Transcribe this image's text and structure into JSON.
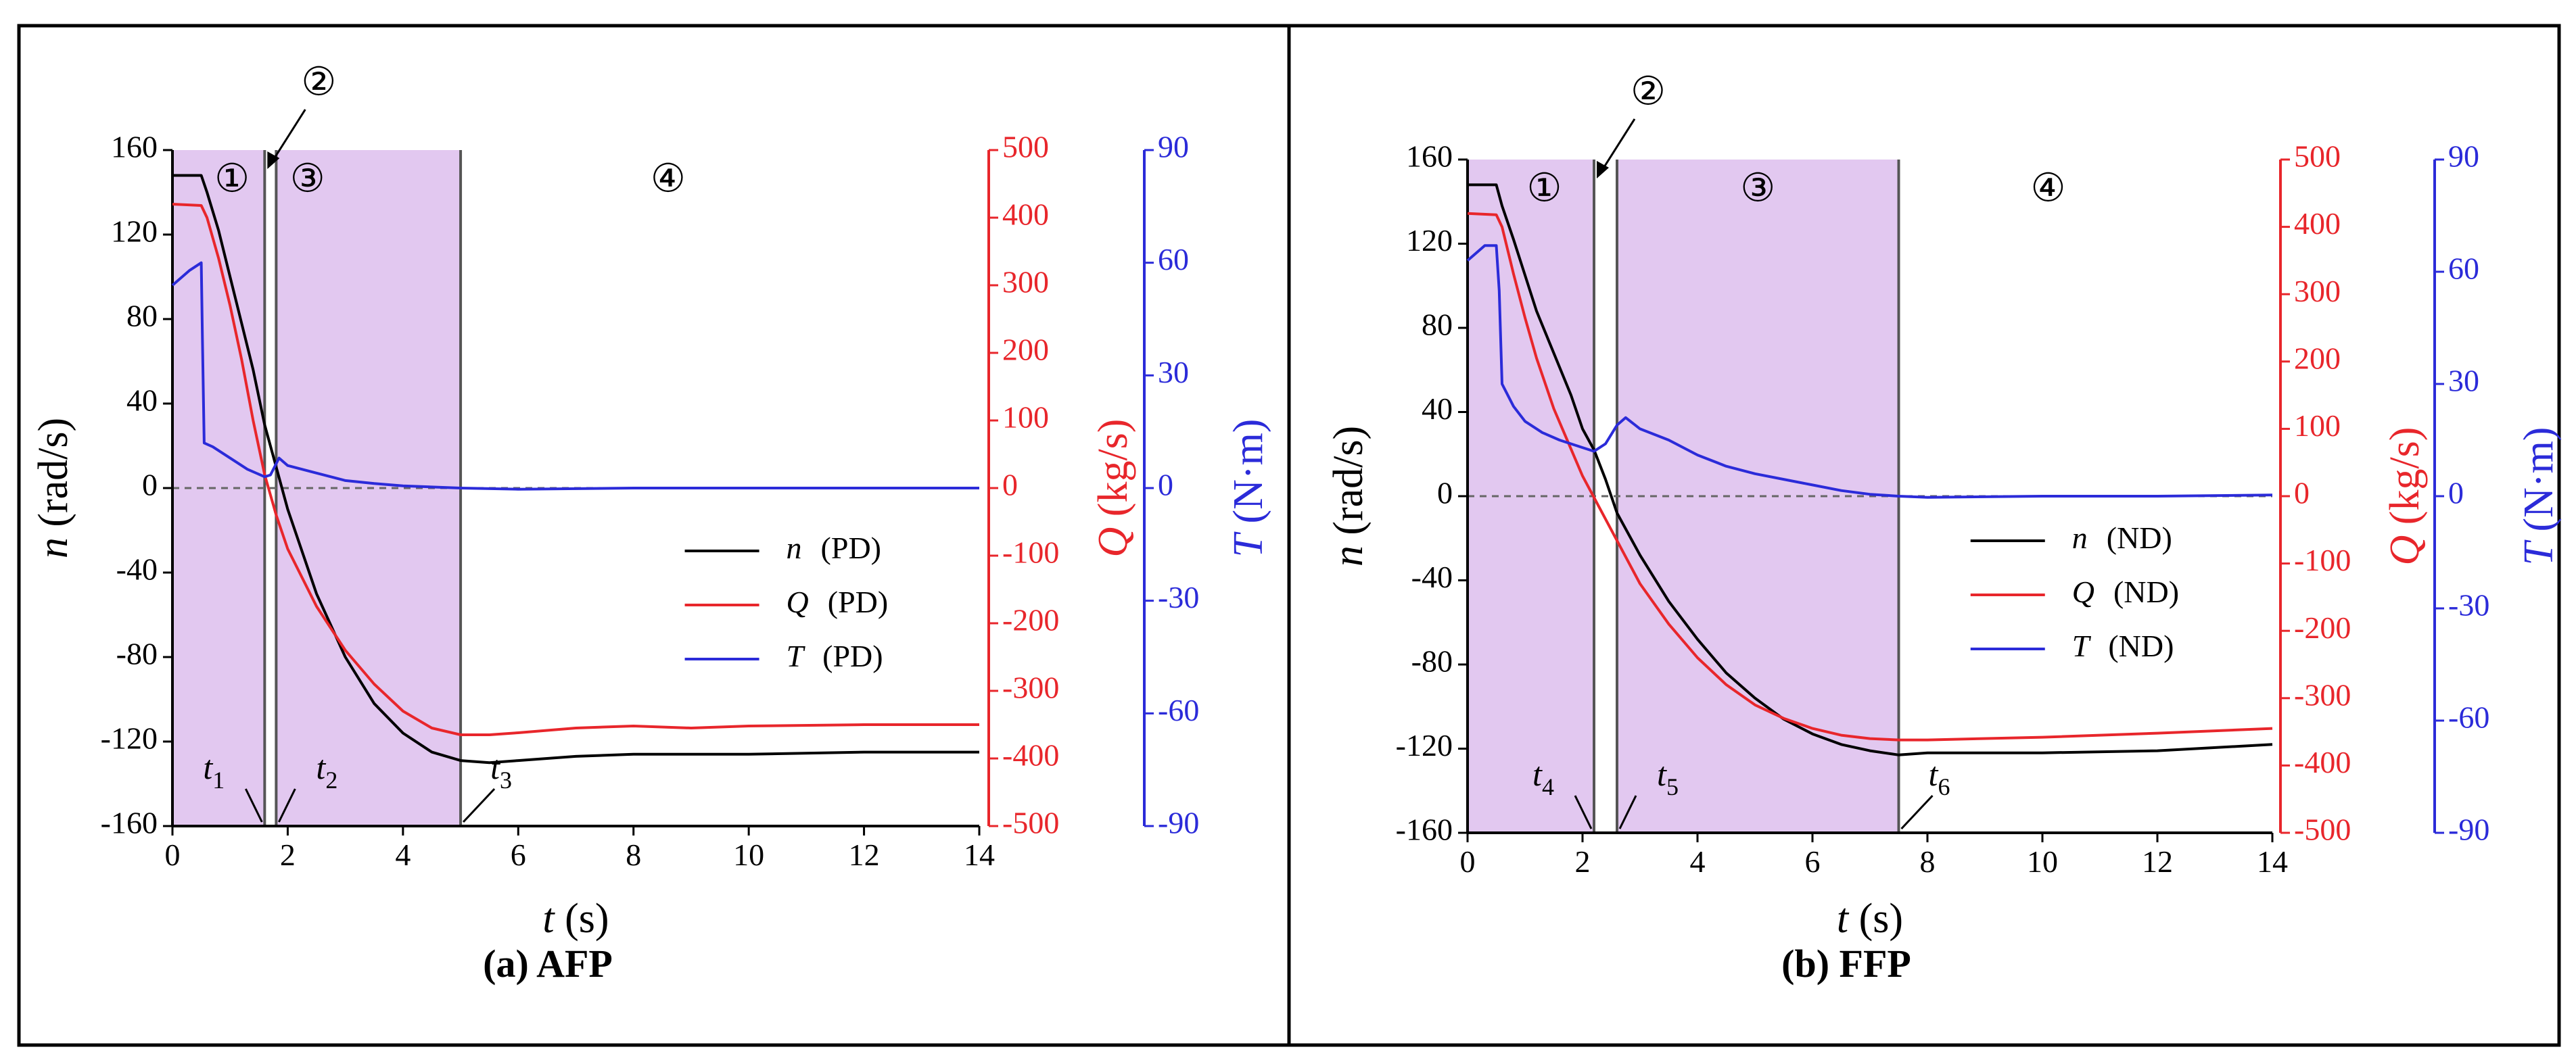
{
  "chart_data": [
    {
      "id": "a",
      "type": "line",
      "caption": "(a) AFP",
      "xlabel": "t (s)",
      "xlim": [
        0,
        14
      ],
      "x_ticks": [
        0,
        2,
        4,
        6,
        8,
        10,
        12,
        14
      ],
      "axes": {
        "n": {
          "label": "n (rad/s)",
          "lim": [
            -160,
            160
          ],
          "ticks": [
            -160,
            -120,
            -80,
            -40,
            0,
            40,
            80,
            120,
            160
          ],
          "color": "#000000"
        },
        "Q": {
          "label": "Q (kg/s)",
          "lim": [
            -500,
            500
          ],
          "ticks": [
            -500,
            -400,
            -300,
            -200,
            -100,
            0,
            100,
            200,
            300,
            400,
            500
          ],
          "color": "#e8262b"
        },
        "T": {
          "label": "T (N·m)",
          "lim": [
            -90,
            90
          ],
          "ticks": [
            -90,
            -60,
            -30,
            0,
            30,
            60,
            90
          ],
          "color": "#2b2bd9"
        }
      },
      "series": [
        {
          "name": "n (PD)",
          "axis": "n",
          "color": "#000000",
          "points": [
            [
              0,
              148
            ],
            [
              0.5,
              148
            ],
            [
              0.6,
              140
            ],
            [
              0.8,
              122
            ],
            [
              1.0,
              100
            ],
            [
              1.2,
              78
            ],
            [
              1.4,
              56
            ],
            [
              1.6,
              30
            ],
            [
              1.8,
              10
            ],
            [
              2.0,
              -10
            ],
            [
              2.5,
              -50
            ],
            [
              3.0,
              -80
            ],
            [
              3.5,
              -102
            ],
            [
              4.0,
              -116
            ],
            [
              4.5,
              -125
            ],
            [
              5.0,
              -129
            ],
            [
              5.5,
              -130
            ],
            [
              6.0,
              -129
            ],
            [
              7.0,
              -127
            ],
            [
              8.0,
              -126
            ],
            [
              10.0,
              -126
            ],
            [
              12.0,
              -125
            ],
            [
              14.0,
              -125
            ]
          ]
        },
        {
          "name": "Q (PD)",
          "axis": "Q",
          "color": "#e8262b",
          "points": [
            [
              0,
              420
            ],
            [
              0.5,
              418
            ],
            [
              0.6,
              400
            ],
            [
              0.8,
              340
            ],
            [
              1.0,
              270
            ],
            [
              1.2,
              190
            ],
            [
              1.4,
              100
            ],
            [
              1.6,
              20
            ],
            [
              1.8,
              -40
            ],
            [
              2.0,
              -90
            ],
            [
              2.5,
              -175
            ],
            [
              3.0,
              -240
            ],
            [
              3.5,
              -290
            ],
            [
              4.0,
              -330
            ],
            [
              4.5,
              -355
            ],
            [
              5.0,
              -365
            ],
            [
              5.5,
              -365
            ],
            [
              6.0,
              -362
            ],
            [
              7.0,
              -355
            ],
            [
              8.0,
              -352
            ],
            [
              9.0,
              -355
            ],
            [
              10.0,
              -352
            ],
            [
              12.0,
              -350
            ],
            [
              14.0,
              -350
            ]
          ]
        },
        {
          "name": "T (PD)",
          "axis": "T",
          "color": "#2b2bd9",
          "points": [
            [
              0,
              54
            ],
            [
              0.3,
              58
            ],
            [
              0.5,
              60
            ],
            [
              0.52,
              40
            ],
            [
              0.55,
              12
            ],
            [
              0.7,
              11
            ],
            [
              1.0,
              8
            ],
            [
              1.3,
              5
            ],
            [
              1.6,
              3
            ],
            [
              1.7,
              3.5
            ],
            [
              1.85,
              8
            ],
            [
              2.0,
              6
            ],
            [
              2.5,
              4
            ],
            [
              3.0,
              2
            ],
            [
              3.5,
              1.2
            ],
            [
              4.0,
              0.6
            ],
            [
              5.0,
              0
            ],
            [
              6.0,
              -0.3
            ],
            [
              8.0,
              0
            ],
            [
              10.0,
              0
            ],
            [
              12.0,
              0
            ],
            [
              14.0,
              0
            ]
          ]
        }
      ],
      "regions": [
        {
          "label": "①",
          "from": 0,
          "to": 1.6
        },
        {
          "label": "②",
          "from": 1.6,
          "to": 1.8
        },
        {
          "label": "③",
          "from": 1.8,
          "to": 5.0
        },
        {
          "label": "④",
          "from": 5.0,
          "to": 14
        }
      ],
      "time_markers": [
        {
          "label": "t1",
          "base": "t",
          "sub": "1",
          "x": 1.6
        },
        {
          "label": "t2",
          "base": "t",
          "sub": "2",
          "x": 1.8
        },
        {
          "label": "t3",
          "base": "t",
          "sub": "3",
          "x": 5.0
        }
      ],
      "shade_color": "#e2c8f0"
    },
    {
      "id": "b",
      "type": "line",
      "caption": "(b) FFP",
      "xlabel": "t (s)",
      "xlim": [
        0,
        14
      ],
      "x_ticks": [
        0,
        2,
        4,
        6,
        8,
        10,
        12,
        14
      ],
      "axes": {
        "n": {
          "label": "n (rad/s)",
          "lim": [
            -160,
            160
          ],
          "ticks": [
            -160,
            -120,
            -80,
            -40,
            0,
            40,
            80,
            120,
            160
          ],
          "color": "#000000"
        },
        "Q": {
          "label": "Q (kg/s)",
          "lim": [
            -500,
            500
          ],
          "ticks": [
            -500,
            -400,
            -300,
            -200,
            -100,
            0,
            100,
            200,
            300,
            400,
            500
          ],
          "color": "#e8262b"
        },
        "T": {
          "label": "T (N·m)",
          "lim": [
            -90,
            90
          ],
          "ticks": [
            -90,
            -60,
            -30,
            0,
            30,
            60,
            90
          ],
          "color": "#2b2bd9"
        }
      },
      "series": [
        {
          "name": "n (ND)",
          "axis": "n",
          "color": "#000000",
          "points": [
            [
              0,
              148
            ],
            [
              0.5,
              148
            ],
            [
              0.6,
              138
            ],
            [
              0.8,
              122
            ],
            [
              1.0,
              105
            ],
            [
              1.2,
              88
            ],
            [
              1.5,
              68
            ],
            [
              1.8,
              48
            ],
            [
              2.0,
              32
            ],
            [
              2.2,
              22
            ],
            [
              2.4,
              8
            ],
            [
              2.6,
              -8
            ],
            [
              3.0,
              -28
            ],
            [
              3.5,
              -50
            ],
            [
              4.0,
              -68
            ],
            [
              4.5,
              -84
            ],
            [
              5.0,
              -96
            ],
            [
              5.5,
              -106
            ],
            [
              6.0,
              -113
            ],
            [
              6.5,
              -118
            ],
            [
              7.0,
              -121
            ],
            [
              7.5,
              -123
            ],
            [
              8.0,
              -122
            ],
            [
              10.0,
              -122
            ],
            [
              12.0,
              -121
            ],
            [
              14.0,
              -118
            ]
          ]
        },
        {
          "name": "Q (ND)",
          "axis": "Q",
          "color": "#e8262b",
          "points": [
            [
              0,
              420
            ],
            [
              0.5,
              418
            ],
            [
              0.6,
              400
            ],
            [
              0.8,
              330
            ],
            [
              1.0,
              265
            ],
            [
              1.2,
              205
            ],
            [
              1.5,
              130
            ],
            [
              1.8,
              70
            ],
            [
              2.0,
              30
            ],
            [
              2.5,
              -50
            ],
            [
              3.0,
              -130
            ],
            [
              3.5,
              -190
            ],
            [
              4.0,
              -240
            ],
            [
              4.5,
              -280
            ],
            [
              5.0,
              -310
            ],
            [
              5.5,
              -330
            ],
            [
              6.0,
              -345
            ],
            [
              6.5,
              -355
            ],
            [
              7.0,
              -360
            ],
            [
              7.5,
              -362
            ],
            [
              8.0,
              -362
            ],
            [
              10.0,
              -358
            ],
            [
              12.0,
              -352
            ],
            [
              14.0,
              -345
            ]
          ]
        },
        {
          "name": "T (ND)",
          "axis": "T",
          "color": "#2b2bd9",
          "points": [
            [
              0,
              63
            ],
            [
              0.3,
              67
            ],
            [
              0.5,
              67
            ],
            [
              0.55,
              55
            ],
            [
              0.6,
              30
            ],
            [
              0.8,
              24
            ],
            [
              1.0,
              20
            ],
            [
              1.3,
              17
            ],
            [
              1.6,
              15
            ],
            [
              2.0,
              13
            ],
            [
              2.2,
              12
            ],
            [
              2.4,
              14
            ],
            [
              2.6,
              19
            ],
            [
              2.75,
              21
            ],
            [
              3.0,
              18
            ],
            [
              3.5,
              15
            ],
            [
              4.0,
              11
            ],
            [
              4.5,
              8
            ],
            [
              5.0,
              6
            ],
            [
              5.5,
              4.5
            ],
            [
              6.0,
              3
            ],
            [
              6.5,
              1.5
            ],
            [
              7.0,
              0.5
            ],
            [
              7.5,
              0
            ],
            [
              8.0,
              -0.3
            ],
            [
              10.0,
              0
            ],
            [
              12.0,
              0
            ],
            [
              14.0,
              0.3
            ]
          ]
        }
      ],
      "regions": [
        {
          "label": "①",
          "from": 0,
          "to": 2.2
        },
        {
          "label": "②",
          "from": 2.2,
          "to": 2.6
        },
        {
          "label": "③",
          "from": 2.6,
          "to": 7.5
        },
        {
          "label": "④",
          "from": 7.5,
          "to": 14
        }
      ],
      "time_markers": [
        {
          "label": "t4",
          "base": "t",
          "sub": "4",
          "x": 2.2
        },
        {
          "label": "t5",
          "base": "t",
          "sub": "5",
          "x": 2.6
        },
        {
          "label": "t6",
          "base": "t",
          "sub": "6",
          "x": 7.5
        }
      ],
      "shade_color": "#e2c8f0"
    }
  ]
}
